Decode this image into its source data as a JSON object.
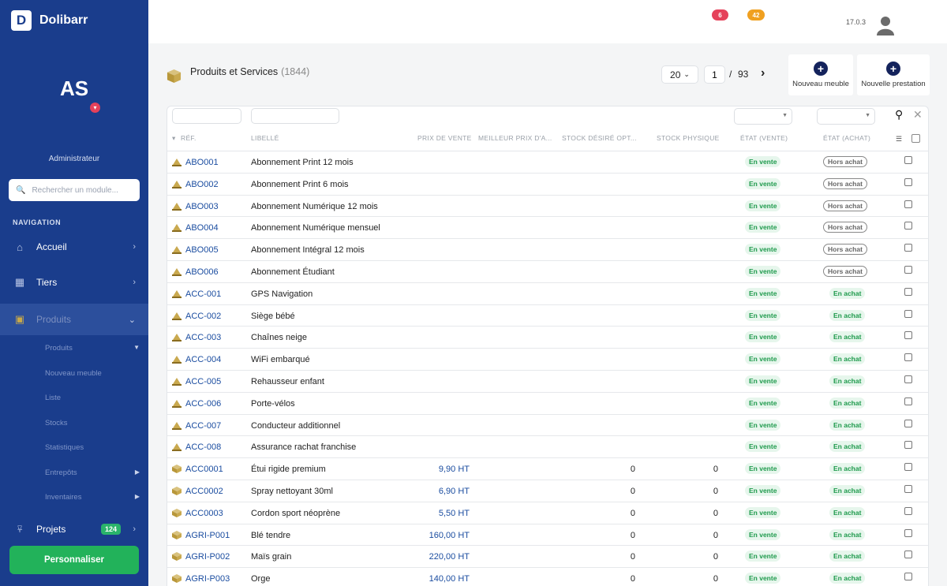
{
  "brand": {
    "logo_letter": "D",
    "name": "Dolibarr"
  },
  "user": {
    "initials": "AS",
    "role": "Administrateur"
  },
  "module_search": {
    "placeholder": "Rechercher un module..."
  },
  "navigation": {
    "heading": "NAVIGATION",
    "items": [
      {
        "label": "Accueil",
        "icon": "home-icon"
      },
      {
        "label": "Tiers",
        "icon": "building-icon"
      },
      {
        "label": "Produits",
        "icon": "cube-icon"
      }
    ],
    "sub_items": [
      {
        "label": "Produits"
      },
      {
        "label": "Nouveau meuble"
      },
      {
        "label": "Liste"
      },
      {
        "label": "Stocks"
      },
      {
        "label": "Statistiques"
      },
      {
        "label": "Entrepôts"
      },
      {
        "label": "Inventaires"
      }
    ],
    "projects": {
      "label": "Projets",
      "badge": "124"
    },
    "customize_label": "Personnaliser"
  },
  "topbar": {
    "notif_red": "6",
    "notif_orange": "42",
    "version": "17.0.3",
    "colors": {
      "red": "#e5415a",
      "orange": "#f0a020"
    }
  },
  "page": {
    "title": "Produits et Services",
    "count": "(1844)",
    "limit": "20",
    "current_page": "1",
    "separator": "/",
    "total_pages": "93",
    "next_icon": "chevron-right-icon",
    "buttons": [
      {
        "label": "Nouveau meuble"
      },
      {
        "label": "Nouvelle prestation"
      }
    ]
  },
  "table": {
    "columns": [
      "RÉF.",
      "LIBELLÉ",
      "PRIX DE VENTE",
      "MEILLEUR PRIX D'A...",
      "STOCK DÉSIRÉ OPT...",
      "STOCK PHYSIQUE",
      "ÉTAT (VENTE)",
      "ÉTAT (ACHAT)"
    ],
    "rows": [
      {
        "type": "service",
        "ref": "ABO001",
        "label": "Abonnement Print 12 mois",
        "price": "",
        "stock_desired": "",
        "stock": "",
        "sale": "En vente",
        "buy": "Hors achat"
      },
      {
        "type": "service",
        "ref": "ABO002",
        "label": "Abonnement Print 6 mois",
        "price": "",
        "stock_desired": "",
        "stock": "",
        "sale": "En vente",
        "buy": "Hors achat"
      },
      {
        "type": "service",
        "ref": "ABO003",
        "label": "Abonnement Numérique 12 mois",
        "price": "",
        "stock_desired": "",
        "stock": "",
        "sale": "En vente",
        "buy": "Hors achat"
      },
      {
        "type": "service",
        "ref": "ABO004",
        "label": "Abonnement Numérique mensuel",
        "price": "",
        "stock_desired": "",
        "stock": "",
        "sale": "En vente",
        "buy": "Hors achat"
      },
      {
        "type": "service",
        "ref": "ABO005",
        "label": "Abonnement Intégral 12 mois",
        "price": "",
        "stock_desired": "",
        "stock": "",
        "sale": "En vente",
        "buy": "Hors achat"
      },
      {
        "type": "service",
        "ref": "ABO006",
        "label": "Abonnement Étudiant",
        "price": "",
        "stock_desired": "",
        "stock": "",
        "sale": "En vente",
        "buy": "Hors achat"
      },
      {
        "type": "service",
        "ref": "ACC-001",
        "label": "GPS Navigation",
        "price": "",
        "stock_desired": "",
        "stock": "",
        "sale": "En vente",
        "buy": "En achat"
      },
      {
        "type": "service",
        "ref": "ACC-002",
        "label": "Siège bébé",
        "price": "",
        "stock_desired": "",
        "stock": "",
        "sale": "En vente",
        "buy": "En achat"
      },
      {
        "type": "service",
        "ref": "ACC-003",
        "label": "Chaînes neige",
        "price": "",
        "stock_desired": "",
        "stock": "",
        "sale": "En vente",
        "buy": "En achat"
      },
      {
        "type": "service",
        "ref": "ACC-004",
        "label": "WiFi embarqué",
        "price": "",
        "stock_desired": "",
        "stock": "",
        "sale": "En vente",
        "buy": "En achat"
      },
      {
        "type": "service",
        "ref": "ACC-005",
        "label": "Rehausseur enfant",
        "price": "",
        "stock_desired": "",
        "stock": "",
        "sale": "En vente",
        "buy": "En achat"
      },
      {
        "type": "service",
        "ref": "ACC-006",
        "label": "Porte-vélos",
        "price": "",
        "stock_desired": "",
        "stock": "",
        "sale": "En vente",
        "buy": "En achat"
      },
      {
        "type": "service",
        "ref": "ACC-007",
        "label": "Conducteur additionnel",
        "price": "",
        "stock_desired": "",
        "stock": "",
        "sale": "En vente",
        "buy": "En achat"
      },
      {
        "type": "service",
        "ref": "ACC-008",
        "label": "Assurance rachat franchise",
        "price": "",
        "stock_desired": "",
        "stock": "",
        "sale": "En vente",
        "buy": "En achat"
      },
      {
        "type": "product",
        "ref": "ACC0001",
        "label": "Étui rigide premium",
        "price": "9,90 HT",
        "stock_desired": "0",
        "stock": "0",
        "sale": "En vente",
        "buy": "En achat"
      },
      {
        "type": "product",
        "ref": "ACC0002",
        "label": "Spray nettoyant 30ml",
        "price": "6,90 HT",
        "stock_desired": "0",
        "stock": "0",
        "sale": "En vente",
        "buy": "En achat"
      },
      {
        "type": "product",
        "ref": "ACC0003",
        "label": "Cordon sport néoprène",
        "price": "5,50 HT",
        "stock_desired": "0",
        "stock": "0",
        "sale": "En vente",
        "buy": "En achat"
      },
      {
        "type": "product",
        "ref": "AGRI-P001",
        "label": "Blé tendre",
        "price": "160,00 HT",
        "stock_desired": "0",
        "stock": "0",
        "sale": "En vente",
        "buy": "En achat"
      },
      {
        "type": "product",
        "ref": "AGRI-P002",
        "label": "Maïs grain",
        "price": "220,00 HT",
        "stock_desired": "0",
        "stock": "0",
        "sale": "En vente",
        "buy": "En achat"
      },
      {
        "type": "product",
        "ref": "AGRI-P003",
        "label": "Orge",
        "price": "140,00 HT",
        "stock_desired": "0",
        "stock": "0",
        "sale": "En vente",
        "buy": "En achat"
      }
    ]
  }
}
